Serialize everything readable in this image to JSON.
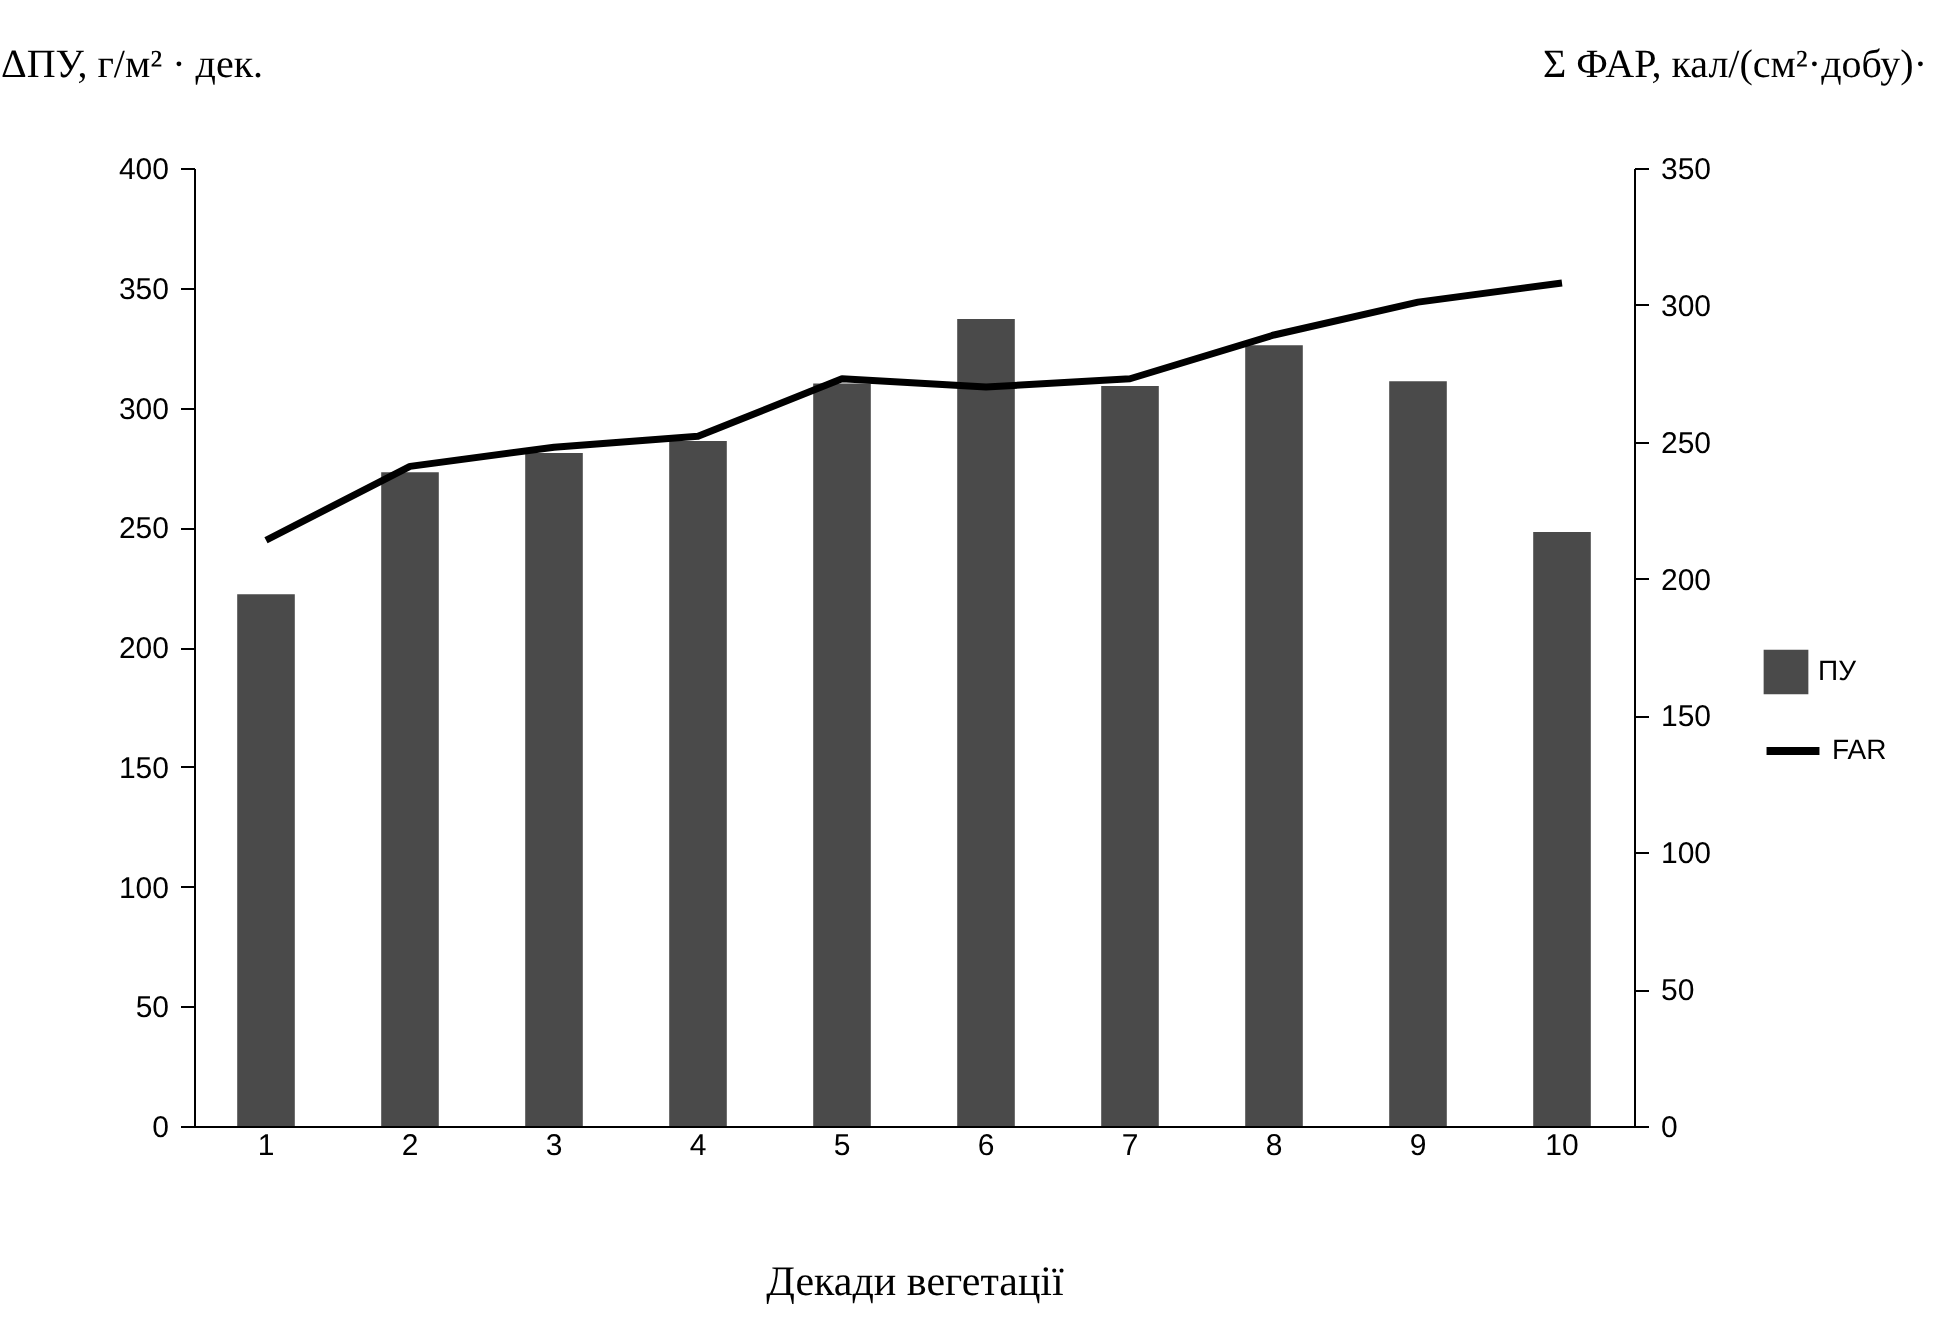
{
  "chart_data": {
    "type": "bar",
    "xlabel": "Декади вегетації",
    "ylabel": "ΔПУ, г/м² · дек.",
    "y2label": "Σ ФАР, кал/(см²·добу)·",
    "categories": [
      "1",
      "2",
      "3",
      "4",
      "5",
      "6",
      "7",
      "8",
      "9",
      "10"
    ],
    "series": [
      {
        "name": "ПУ",
        "color": "#4a4a4a",
        "values": [
          222,
          273,
          281,
          286,
          310,
          337,
          309,
          326,
          311,
          248
        ]
      },
      {
        "name": "FAR",
        "type": "line",
        "axis": "y2",
        "color": "#000000",
        "values": [
          214,
          241,
          248,
          252,
          273,
          270,
          273,
          289,
          301,
          308
        ]
      }
    ],
    "ylim": [
      0,
      400
    ],
    "yticks": [
      0,
      50,
      100,
      150,
      200,
      250,
      300,
      350,
      400
    ],
    "y2lim": [
      0,
      350
    ],
    "y2ticks": [
      0,
      50,
      100,
      150,
      200,
      250,
      300,
      350
    ],
    "grid": false,
    "legend": "right",
    "line_style": "solid",
    "marker": "none"
  }
}
